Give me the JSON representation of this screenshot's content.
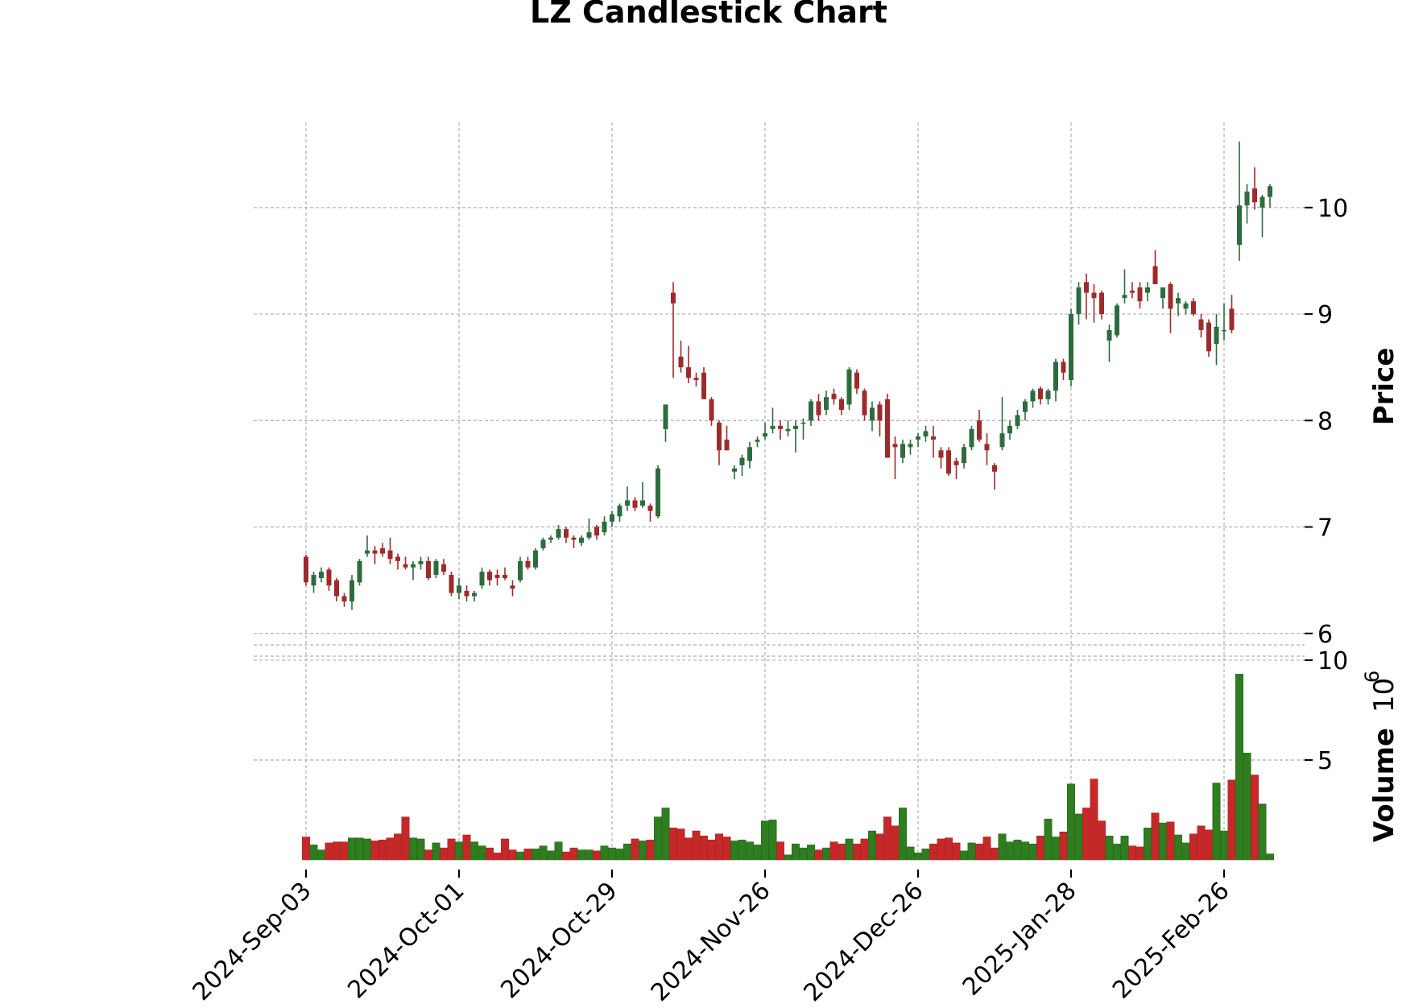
{
  "chart_data": {
    "type": "candlestick",
    "title": "LZ Candlestick Chart",
    "price_panel": {
      "ylabel": "Price",
      "ylim": [
        5.9,
        10.8
      ],
      "yticks": [
        6,
        7,
        8,
        9,
        10
      ]
    },
    "volume_panel": {
      "ylabel": "Volume",
      "exponent_label": "10",
      "exponent_power": "6",
      "ylim": [
        0,
        10.2
      ],
      "yticks": [
        5,
        10
      ]
    },
    "x_tick_labels": [
      "2024-Sep-03",
      "2024-Oct-01",
      "2024-Oct-29",
      "2024-Nov-26",
      "2024-Dec-26",
      "2025-Jan-28",
      "2025-Feb-26"
    ],
    "x_tick_indices": [
      0,
      20,
      40,
      60,
      80,
      100,
      120
    ],
    "grid": true,
    "colors": {
      "up": "#2e6b3e",
      "down": "#9e2b2b",
      "volume_up": "#2e7d1f",
      "volume_down": "#c62828",
      "grid": "#b0b0b0"
    },
    "candles": [
      [
        6.72,
        6.74,
        6.45,
        6.48,
        1.15
      ],
      [
        6.45,
        6.58,
        6.38,
        6.55,
        0.75
      ],
      [
        6.52,
        6.62,
        6.48,
        6.58,
        0.5
      ],
      [
        6.6,
        6.62,
        6.4,
        6.45,
        0.85
      ],
      [
        6.5,
        6.52,
        6.3,
        6.35,
        0.9
      ],
      [
        6.35,
        6.38,
        6.25,
        6.3,
        0.9
      ],
      [
        6.3,
        6.55,
        6.22,
        6.5,
        1.1
      ],
      [
        6.48,
        6.7,
        6.45,
        6.68,
        1.1
      ],
      [
        6.75,
        6.92,
        6.72,
        6.78,
        1.05
      ],
      [
        6.78,
        6.82,
        6.65,
        6.75,
        0.95
      ],
      [
        6.8,
        6.85,
        6.72,
        6.75,
        1.0
      ],
      [
        6.78,
        6.9,
        6.65,
        6.7,
        1.1
      ],
      [
        6.72,
        6.75,
        6.6,
        6.68,
        1.3
      ],
      [
        6.65,
        6.72,
        6.6,
        6.62,
        2.15
      ],
      [
        6.62,
        6.68,
        6.5,
        6.65,
        1.1
      ],
      [
        6.65,
        6.72,
        6.6,
        6.68,
        1.05
      ],
      [
        6.68,
        6.72,
        6.5,
        6.52,
        0.5
      ],
      [
        6.55,
        6.7,
        6.52,
        6.68,
        0.85
      ],
      [
        6.65,
        6.7,
        6.55,
        6.58,
        0.6
      ],
      [
        6.55,
        6.58,
        6.35,
        6.38,
        1.05
      ],
      [
        6.38,
        6.52,
        6.32,
        6.45,
        0.9
      ],
      [
        6.4,
        6.45,
        6.3,
        6.35,
        1.25
      ],
      [
        6.35,
        6.4,
        6.3,
        6.38,
        0.9
      ],
      [
        6.45,
        6.62,
        6.42,
        6.58,
        0.7
      ],
      [
        6.58,
        6.6,
        6.45,
        6.5,
        0.6
      ],
      [
        6.55,
        6.6,
        6.45,
        6.52,
        0.35
      ],
      [
        6.55,
        6.62,
        6.5,
        6.52,
        1.05
      ],
      [
        6.45,
        6.5,
        6.35,
        6.42,
        0.5
      ],
      [
        6.5,
        6.72,
        6.48,
        6.68,
        0.4
      ],
      [
        6.68,
        6.72,
        6.6,
        6.62,
        0.55
      ],
      [
        6.62,
        6.8,
        6.6,
        6.78,
        0.55
      ],
      [
        6.8,
        6.9,
        6.78,
        6.88,
        0.7
      ],
      [
        6.88,
        6.92,
        6.85,
        6.9,
        0.45
      ],
      [
        6.9,
        7.02,
        6.88,
        6.98,
        0.9
      ],
      [
        6.98,
        7.0,
        6.85,
        6.9,
        0.4
      ],
      [
        6.9,
        6.92,
        6.8,
        6.88,
        0.6
      ],
      [
        6.85,
        6.92,
        6.82,
        6.9,
        0.5
      ],
      [
        6.9,
        7.08,
        6.88,
        6.95,
        0.5
      ],
      [
        7.0,
        7.02,
        6.88,
        6.92,
        0.45
      ],
      [
        6.95,
        7.1,
        6.92,
        7.05,
        0.7
      ],
      [
        7.05,
        7.15,
        7.0,
        7.12,
        0.6
      ],
      [
        7.1,
        7.22,
        7.05,
        7.2,
        0.55
      ],
      [
        7.2,
        7.38,
        7.15,
        7.25,
        0.8
      ],
      [
        7.25,
        7.28,
        7.15,
        7.18,
        1.05
      ],
      [
        7.2,
        7.42,
        7.18,
        7.25,
        0.95
      ],
      [
        7.2,
        7.22,
        7.05,
        7.15,
        1.0
      ],
      [
        7.1,
        7.58,
        7.08,
        7.55,
        2.15
      ],
      [
        7.92,
        8.15,
        7.8,
        8.15,
        2.6
      ],
      [
        9.2,
        9.3,
        8.4,
        9.1,
        1.6
      ],
      [
        8.6,
        8.75,
        8.45,
        8.5,
        1.55
      ],
      [
        8.5,
        8.7,
        8.35,
        8.4,
        1.1
      ],
      [
        8.4,
        8.45,
        8.32,
        8.38,
        1.45
      ],
      [
        8.45,
        8.5,
        8.2,
        8.2,
        1.2
      ],
      [
        8.2,
        8.22,
        7.95,
        8.0,
        1.0
      ],
      [
        7.98,
        8.0,
        7.58,
        7.72,
        1.3
      ],
      [
        7.82,
        7.95,
        7.72,
        7.72,
        1.15
      ],
      [
        7.52,
        7.58,
        7.45,
        7.55,
        0.95
      ],
      [
        7.58,
        7.68,
        7.48,
        7.65,
        1.0
      ],
      [
        7.62,
        7.8,
        7.55,
        7.75,
        0.9
      ],
      [
        7.8,
        7.85,
        7.75,
        7.82,
        0.75
      ],
      [
        7.85,
        7.98,
        7.82,
        7.88,
        1.95
      ],
      [
        7.92,
        8.12,
        7.88,
        7.95,
        2.0
      ],
      [
        7.95,
        8.0,
        7.82,
        7.92,
        0.9
      ],
      [
        7.9,
        8.0,
        7.85,
        7.92,
        0.25
      ],
      [
        7.92,
        8.0,
        7.7,
        7.95,
        0.8
      ],
      [
        7.98,
        8.02,
        7.82,
        7.98,
        0.6
      ],
      [
        8.0,
        8.2,
        7.95,
        8.18,
        0.75
      ],
      [
        8.18,
        8.25,
        8.0,
        8.05,
        0.5
      ],
      [
        8.1,
        8.28,
        8.05,
        8.22,
        0.6
      ],
      [
        8.25,
        8.3,
        8.15,
        8.2,
        0.9
      ],
      [
        8.2,
        8.22,
        8.05,
        8.1,
        0.8
      ],
      [
        8.15,
        8.5,
        8.1,
        8.48,
        1.05
      ],
      [
        8.45,
        8.48,
        8.25,
        8.3,
        0.8
      ],
      [
        8.28,
        8.3,
        8.0,
        8.05,
        1.05
      ],
      [
        8.0,
        8.18,
        7.9,
        8.12,
        1.45
      ],
      [
        8.15,
        8.18,
        7.85,
        8.0,
        1.3
      ],
      [
        8.2,
        8.25,
        7.65,
        7.65,
        2.15
      ],
      [
        7.78,
        7.85,
        7.45,
        7.75,
        1.7
      ],
      [
        7.65,
        7.82,
        7.6,
        7.78,
        2.6
      ],
      [
        7.75,
        7.82,
        7.68,
        7.78,
        0.65
      ],
      [
        7.82,
        7.88,
        7.75,
        7.85,
        0.35
      ],
      [
        7.85,
        7.95,
        7.8,
        7.9,
        0.55
      ],
      [
        7.85,
        7.95,
        7.65,
        7.82,
        0.8
      ],
      [
        7.72,
        7.75,
        7.55,
        7.65,
        1.05
      ],
      [
        7.72,
        7.75,
        7.48,
        7.5,
        1.1
      ],
      [
        7.62,
        7.65,
        7.45,
        7.58,
        0.85
      ],
      [
        7.6,
        7.78,
        7.55,
        7.75,
        0.45
      ],
      [
        7.75,
        7.95,
        7.72,
        7.92,
        0.85
      ],
      [
        8.0,
        8.1,
        7.8,
        7.82,
        0.8
      ],
      [
        7.78,
        7.88,
        7.58,
        7.72,
        1.15
      ],
      [
        7.58,
        7.6,
        7.35,
        7.52,
        0.6
      ],
      [
        7.75,
        8.22,
        7.72,
        7.88,
        1.3
      ],
      [
        7.88,
        8.0,
        7.82,
        7.95,
        0.9
      ],
      [
        7.95,
        8.1,
        7.92,
        8.05,
        1.0
      ],
      [
        8.08,
        8.2,
        8.0,
        8.18,
        0.9
      ],
      [
        8.18,
        8.3,
        8.12,
        8.28,
        0.8
      ],
      [
        8.3,
        8.32,
        8.15,
        8.2,
        1.2
      ],
      [
        8.2,
        8.3,
        8.15,
        8.28,
        2.05
      ],
      [
        8.28,
        8.58,
        8.18,
        8.55,
        1.15
      ],
      [
        8.55,
        8.58,
        8.38,
        8.45,
        1.4
      ],
      [
        8.38,
        9.05,
        8.32,
        9.0,
        3.8
      ],
      [
        9.0,
        9.3,
        8.9,
        9.25,
        2.3
      ],
      [
        9.3,
        9.38,
        8.95,
        9.2,
        2.6
      ],
      [
        9.2,
        9.28,
        8.92,
        9.15,
        4.05
      ],
      [
        9.2,
        9.22,
        8.95,
        9.0,
        1.95
      ],
      [
        8.75,
        8.9,
        8.55,
        8.85,
        1.2
      ],
      [
        8.8,
        9.1,
        8.78,
        9.08,
        0.8
      ],
      [
        9.15,
        9.42,
        9.1,
        9.18,
        1.2
      ],
      [
        9.22,
        9.3,
        9.15,
        9.2,
        0.7
      ],
      [
        9.25,
        9.3,
        9.05,
        9.12,
        0.65
      ],
      [
        9.2,
        9.3,
        9.12,
        9.25,
        1.6
      ],
      [
        9.45,
        9.6,
        9.3,
        9.28,
        2.35
      ],
      [
        9.15,
        9.25,
        9.05,
        9.25,
        1.85
      ],
      [
        9.28,
        9.3,
        8.82,
        9.05,
        1.9
      ],
      [
        9.1,
        9.2,
        8.98,
        9.15,
        1.25
      ],
      [
        9.05,
        9.12,
        9.0,
        9.1,
        0.85
      ],
      [
        9.12,
        9.15,
        8.98,
        9.0,
        1.3
      ],
      [
        8.95,
        9.0,
        8.78,
        8.85,
        1.7
      ],
      [
        8.92,
        8.95,
        8.6,
        8.65,
        1.5
      ],
      [
        8.72,
        9.0,
        8.52,
        8.88,
        3.85
      ],
      [
        8.85,
        9.1,
        8.75,
        8.85,
        1.45
      ],
      [
        9.05,
        9.18,
        8.82,
        8.85,
        4.0
      ],
      [
        9.65,
        10.62,
        9.5,
        10.02,
        9.3
      ],
      [
        10.02,
        10.22,
        9.85,
        10.15,
        5.35
      ],
      [
        10.18,
        10.38,
        9.98,
        10.05,
        4.25
      ],
      [
        10.0,
        10.12,
        9.72,
        10.1,
        2.8
      ],
      [
        10.1,
        10.22,
        10.0,
        10.2,
        0.3
      ]
    ]
  }
}
